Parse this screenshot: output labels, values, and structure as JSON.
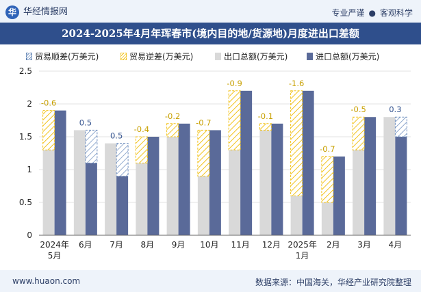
{
  "header": {
    "logo_text": "华",
    "brand": "华经情报网",
    "tag1": "专业严谨",
    "dot": "●",
    "tag2": "客观科学"
  },
  "colors": {
    "export": "#d9d9d9",
    "import": "#5a6a99",
    "surplus_hatch": "#6f8fbf",
    "deficit_hatch": "#f2c31c",
    "surplus_label": "#2f4f8c",
    "deficit_label": "#c8a000"
  },
  "chart_data": {
    "type": "bar",
    "title": "2024-2025年4月年珲春市(境内目的地/货源地)月度进出口差额",
    "categories": [
      "2024年5月",
      "6月",
      "7月",
      "8月",
      "9月",
      "10月",
      "11月",
      "12月",
      "2025年1月",
      "2月",
      "3月",
      "4月"
    ],
    "series": [
      {
        "name": "出口总额(万美元)",
        "values": [
          1.3,
          1.6,
          1.4,
          1.1,
          1.5,
          0.9,
          1.3,
          1.6,
          0.6,
          0.5,
          1.3,
          1.8
        ]
      },
      {
        "name": "进口总额(万美元)",
        "values": [
          1.9,
          1.1,
          0.9,
          1.5,
          1.7,
          1.6,
          2.2,
          1.7,
          2.2,
          1.2,
          1.8,
          1.5
        ]
      }
    ],
    "balance": {
      "surplus_name": "贸易顺差(万美元)",
      "deficit_name": "贸易逆差(万美元)",
      "values": [
        -0.6,
        0.5,
        0.5,
        -0.4,
        -0.2,
        -0.7,
        -0.9,
        -0.1,
        -1.6,
        -0.7,
        -0.5,
        0.3
      ]
    },
    "yticks": [
      0,
      0.5,
      1,
      1.5,
      2,
      2.5
    ],
    "ylim": [
      0,
      2.5
    ],
    "grid": true,
    "legend_position": "top"
  },
  "footer": {
    "site": "www.huaon.com",
    "source": "数据来源：中国海关，华经产业研究院整理"
  }
}
